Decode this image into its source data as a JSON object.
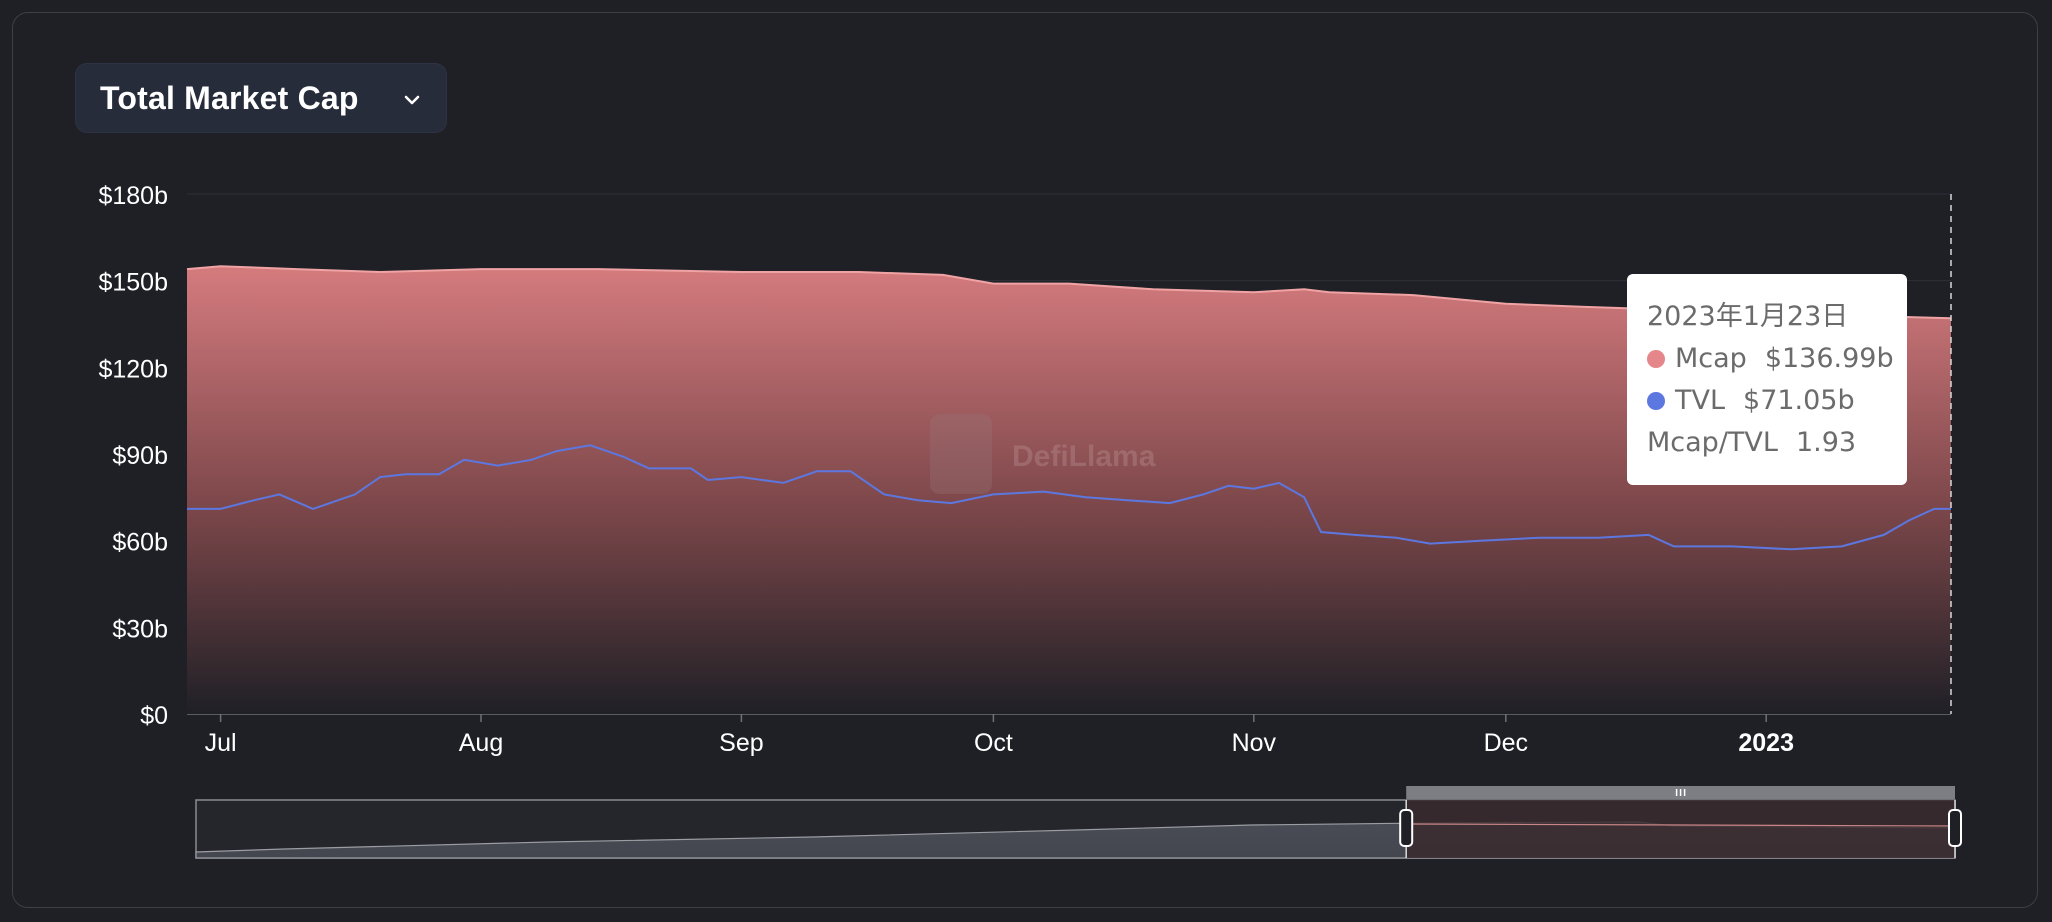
{
  "selector": {
    "label": "Total Market Cap",
    "icon": "chevron-down-icon"
  },
  "watermark": {
    "text": "DefiLlama"
  },
  "tooltip": {
    "date": "2023年1月23日",
    "mcap_label": "Mcap",
    "mcap_value": "$136.99b",
    "tvl_label": "TVL",
    "tvl_value": "$71.05b",
    "ratio_label": "Mcap/TVL",
    "ratio_value": "1.93"
  },
  "colors": {
    "background": "#1f2026",
    "mcap": "#e5878a",
    "tvl": "#5d77e0",
    "axis_text": "#ffffff"
  },
  "chart_data": {
    "type": "area",
    "title": "",
    "xlabel": "",
    "ylabel": "",
    "x_range": [
      "2022-06-27",
      "2023-01-23"
    ],
    "ylim": [
      0,
      180
    ],
    "y_unit": "billion USD",
    "y_ticks": [
      "$0",
      "$30b",
      "$60b",
      "$90b",
      "$120b",
      "$150b",
      "$180b"
    ],
    "y_tick_values": [
      0,
      30,
      60,
      90,
      120,
      150,
      180
    ],
    "x_ticks": [
      {
        "label": "Jul",
        "date": "2022-07-01",
        "bold": false
      },
      {
        "label": "Aug",
        "date": "2022-08-01",
        "bold": false
      },
      {
        "label": "Sep",
        "date": "2022-09-01",
        "bold": false
      },
      {
        "label": "Oct",
        "date": "2022-10-01",
        "bold": false
      },
      {
        "label": "Nov",
        "date": "2022-11-01",
        "bold": false
      },
      {
        "label": "Dec",
        "date": "2022-12-01",
        "bold": false
      },
      {
        "label": "2023",
        "date": "2023-01-01",
        "bold": true
      }
    ],
    "grid": true,
    "legend": "none",
    "series": [
      {
        "name": "Mcap",
        "color": "#e5878a",
        "style": "area",
        "points": [
          [
            "2022-06-27",
            154
          ],
          [
            "2022-07-01",
            155
          ],
          [
            "2022-07-10",
            154
          ],
          [
            "2022-07-20",
            153
          ],
          [
            "2022-08-01",
            154
          ],
          [
            "2022-08-15",
            154
          ],
          [
            "2022-09-01",
            153
          ],
          [
            "2022-09-15",
            153
          ],
          [
            "2022-09-25",
            152
          ],
          [
            "2022-10-01",
            149
          ],
          [
            "2022-10-10",
            149
          ],
          [
            "2022-10-20",
            147
          ],
          [
            "2022-11-01",
            146
          ],
          [
            "2022-11-07",
            147
          ],
          [
            "2022-11-10",
            146
          ],
          [
            "2022-11-20",
            145
          ],
          [
            "2022-12-01",
            142
          ],
          [
            "2022-12-10",
            141
          ],
          [
            "2022-12-20",
            140
          ],
          [
            "2023-01-01",
            139
          ],
          [
            "2023-01-10",
            138
          ],
          [
            "2023-01-23",
            137
          ]
        ]
      },
      {
        "name": "TVL",
        "color": "#5d77e0",
        "style": "line",
        "points": [
          [
            "2022-06-27",
            71
          ],
          [
            "2022-07-01",
            71
          ],
          [
            "2022-07-05",
            74
          ],
          [
            "2022-07-08",
            76
          ],
          [
            "2022-07-12",
            71
          ],
          [
            "2022-07-17",
            76
          ],
          [
            "2022-07-20",
            82
          ],
          [
            "2022-07-23",
            83
          ],
          [
            "2022-07-27",
            83
          ],
          [
            "2022-07-30",
            88
          ],
          [
            "2022-08-03",
            86
          ],
          [
            "2022-08-07",
            88
          ],
          [
            "2022-08-10",
            91
          ],
          [
            "2022-08-14",
            93
          ],
          [
            "2022-08-18",
            89
          ],
          [
            "2022-08-21",
            85
          ],
          [
            "2022-08-26",
            85
          ],
          [
            "2022-08-28",
            81
          ],
          [
            "2022-09-01",
            82
          ],
          [
            "2022-09-06",
            80
          ],
          [
            "2022-09-10",
            84
          ],
          [
            "2022-09-14",
            84
          ],
          [
            "2022-09-18",
            76
          ],
          [
            "2022-09-22",
            74
          ],
          [
            "2022-09-26",
            73
          ],
          [
            "2022-10-01",
            76
          ],
          [
            "2022-10-07",
            77
          ],
          [
            "2022-10-12",
            75
          ],
          [
            "2022-10-17",
            74
          ],
          [
            "2022-10-22",
            73
          ],
          [
            "2022-10-26",
            76
          ],
          [
            "2022-10-29",
            79
          ],
          [
            "2022-11-01",
            78
          ],
          [
            "2022-11-04",
            80
          ],
          [
            "2022-11-07",
            75
          ],
          [
            "2022-11-09",
            63
          ],
          [
            "2022-11-13",
            62
          ],
          [
            "2022-11-18",
            61
          ],
          [
            "2022-11-22",
            59
          ],
          [
            "2022-11-28",
            60
          ],
          [
            "2022-12-05",
            61
          ],
          [
            "2022-12-12",
            61
          ],
          [
            "2022-12-18",
            62
          ],
          [
            "2022-12-21",
            58
          ],
          [
            "2022-12-28",
            58
          ],
          [
            "2023-01-04",
            57
          ],
          [
            "2023-01-10",
            58
          ],
          [
            "2023-01-15",
            62
          ],
          [
            "2023-01-18",
            67
          ],
          [
            "2023-01-21",
            71
          ],
          [
            "2023-01-23",
            71
          ]
        ]
      }
    ],
    "navigator": {
      "series": [
        [
          0,
          0
        ],
        [
          0.05,
          3
        ],
        [
          0.2,
          10
        ],
        [
          0.35,
          15
        ],
        [
          0.5,
          22
        ],
        [
          0.6,
          27
        ],
        [
          0.7,
          29
        ],
        [
          0.82,
          30
        ],
        [
          0.84,
          26
        ],
        [
          0.92,
          25
        ],
        [
          1.0,
          24
        ]
      ],
      "window": [
        0.688,
        1.0
      ]
    }
  }
}
